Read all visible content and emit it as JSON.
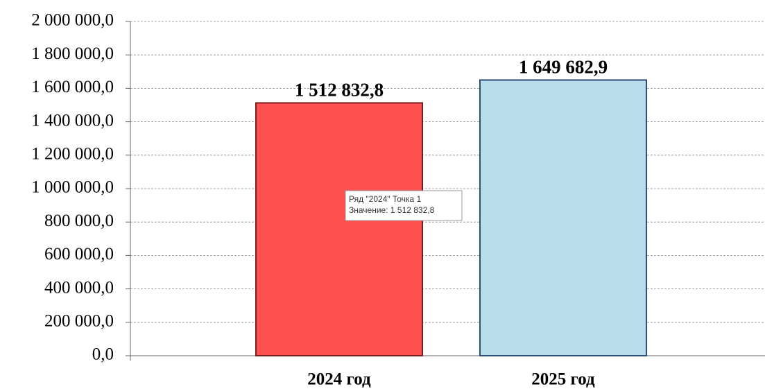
{
  "chart_data": {
    "type": "bar",
    "categories": [
      "2024 год",
      "2025 год"
    ],
    "values": [
      1512832.8,
      1649682.9
    ],
    "value_labels": [
      "1 512 832,8",
      "1 649 682,9"
    ],
    "colors": [
      "#ff5050",
      "#b7dde8"
    ],
    "ylim": [
      0,
      2000000
    ],
    "yticks": [
      {
        "value": 0,
        "label": "0,0"
      },
      {
        "value": 200000,
        "label": "200 000,0"
      },
      {
        "value": 400000,
        "label": "400 000,0"
      },
      {
        "value": 600000,
        "label": "600 000,0"
      },
      {
        "value": 800000,
        "label": "800 000,0"
      },
      {
        "value": 1000000,
        "label": "1 000 000,0"
      },
      {
        "value": 1200000,
        "label": "1 200 000,0"
      },
      {
        "value": 1400000,
        "label": "1 400 000,0"
      },
      {
        "value": 1600000,
        "label": "1 600 000,0"
      },
      {
        "value": 1800000,
        "label": "1 800 000,0"
      },
      {
        "value": 2000000,
        "label": "2 000 000,0"
      }
    ],
    "grid": true,
    "tooltip": {
      "lines": [
        "Ряд \"2024\" Точка 1",
        "Значение: 1 512 832,8"
      ]
    }
  }
}
